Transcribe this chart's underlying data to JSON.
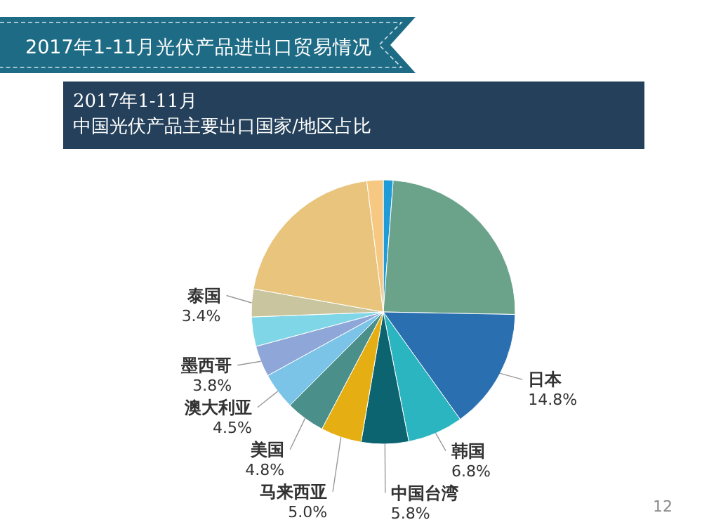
{
  "chart_data": {
    "type": "pie",
    "title": "2017年1-11月光伏产品进出口贸易情况",
    "subtitle": [
      "2017年1-11月",
      "中国光伏产品主要出口国家/地区占比"
    ],
    "categories": [
      null,
      null,
      "日本",
      "韩国",
      "中国台湾",
      "马来西亚",
      "美国",
      "澳大利亚",
      "墨西哥",
      null,
      "泰国",
      null,
      null
    ],
    "values": [
      1.2,
      24.1,
      14.8,
      6.8,
      5.8,
      5.0,
      4.8,
      4.5,
      3.8,
      3.6,
      3.4,
      20.2,
      2.0
    ],
    "value_labels": [
      null,
      null,
      "14.8%",
      "6.8%",
      "5.8%",
      "5.0%",
      "4.8%",
      "4.5%",
      "3.8%",
      null,
      "3.4%",
      null,
      null
    ],
    "colors": [
      "#1f9bd7",
      "#6aa28a",
      "#2a6fb0",
      "#2bb5c0",
      "#0b6470",
      "#e5ae12",
      "#4b8f8a",
      "#7cc3e8",
      "#8fa7d8",
      "#7fd6e6",
      "#c9c59e",
      "#e9c47c",
      "#f6c882"
    ],
    "annotations": [
      "12"
    ]
  }
}
